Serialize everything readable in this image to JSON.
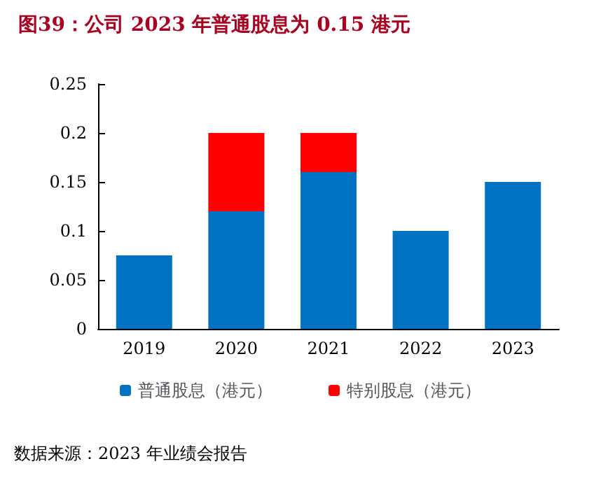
{
  "chart_data": {
    "type": "bar",
    "title": "图39：公司 2023 年普通股息为 0.15 港元",
    "categories": [
      "2019",
      "2020",
      "2021",
      "2022",
      "2023"
    ],
    "stacked": true,
    "series": [
      {
        "name": "普通股息（港元）",
        "color": "#0070c0",
        "values": [
          0.075,
          0.12,
          0.16,
          0.1,
          0.15
        ]
      },
      {
        "name": "特别股息（港元）",
        "color": "#ff0000",
        "values": [
          null,
          0.08,
          0.04,
          null,
          null
        ]
      }
    ],
    "ylim": [
      0,
      0.25
    ],
    "yticks": [
      0,
      0.05,
      0.1,
      0.15,
      0.2,
      0.25
    ],
    "grid": false,
    "legend": "bottom",
    "annotations": [
      "数据来源：2023 年业绩会报告"
    ]
  }
}
